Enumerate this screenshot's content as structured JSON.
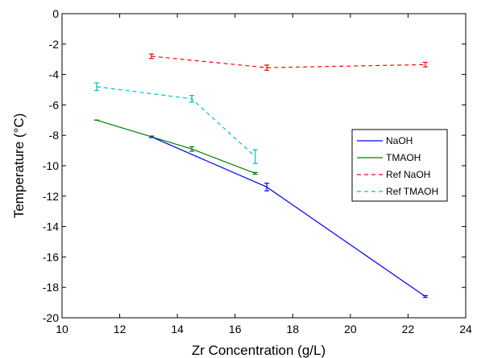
{
  "chart_data": {
    "type": "line",
    "xlabel": "Zr Concentration (g/L)",
    "ylabel_main": "Temperature (",
    "ylabel_unit": "°C",
    "ylabel_close": ")",
    "xlim": [
      10,
      24
    ],
    "ylim": [
      -20,
      0
    ],
    "xticks": [
      10,
      12,
      14,
      16,
      18,
      20,
      22,
      24
    ],
    "yticks": [
      0,
      -2,
      -4,
      -6,
      -8,
      -10,
      -12,
      -14,
      -16,
      -18,
      -20
    ],
    "grid": false,
    "legend_position": "right",
    "series": [
      {
        "name": "NaOH",
        "color": "#0000ff",
        "dash": "solid",
        "points": [
          {
            "x": 13.1,
            "y": -8.1,
            "err": 0.05
          },
          {
            "x": 17.1,
            "y": -11.4,
            "err": 0.25
          },
          {
            "x": 22.6,
            "y": -18.6,
            "err": 0.06
          }
        ]
      },
      {
        "name": "TMAOH",
        "color": "#007f00",
        "dash": "solid",
        "points": [
          {
            "x": 11.2,
            "y": -7.0,
            "err": 0.0
          },
          {
            "x": 14.5,
            "y": -8.9,
            "err": 0.15
          },
          {
            "x": 16.7,
            "y": -10.5,
            "err": 0.06
          }
        ]
      },
      {
        "name": "Ref NaOH",
        "color": "#ff0000",
        "dash": "dashed",
        "points": [
          {
            "x": 13.1,
            "y": -2.8,
            "err": 0.15
          },
          {
            "x": 17.1,
            "y": -3.55,
            "err": 0.17
          },
          {
            "x": 22.6,
            "y": -3.35,
            "err": 0.15
          }
        ]
      },
      {
        "name": "Ref TMAOH",
        "color": "#00bfbf",
        "dash": "dashed",
        "points": [
          {
            "x": 11.2,
            "y": -4.8,
            "err": 0.25
          },
          {
            "x": 14.5,
            "y": -5.6,
            "err": 0.22
          },
          {
            "x": 16.7,
            "y": -9.4,
            "err": 0.45
          }
        ]
      }
    ]
  }
}
